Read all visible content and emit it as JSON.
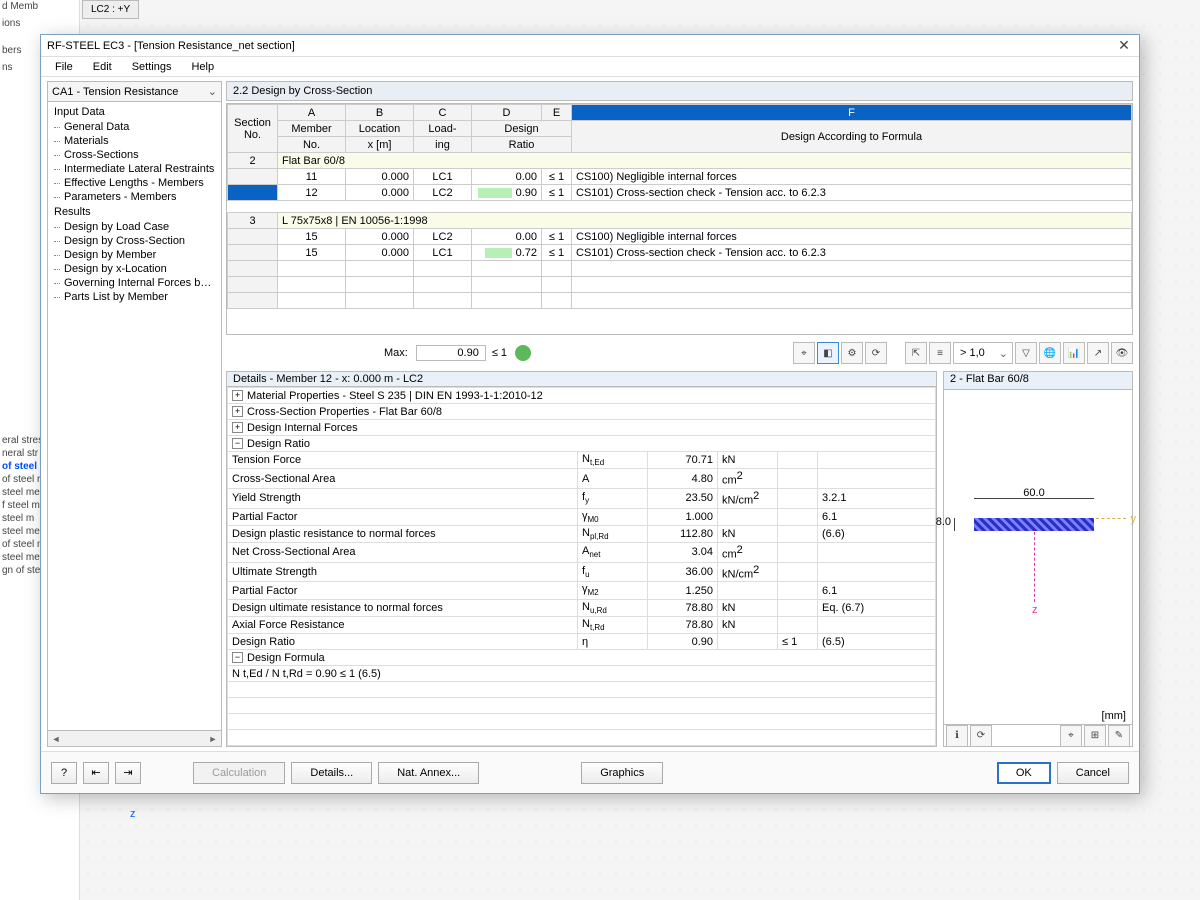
{
  "bg": {
    "tab": "LC2 : +Y",
    "left_partial": [
      "d Memb",
      "",
      "",
      "ions",
      "",
      "",
      "",
      "",
      "",
      "",
      "",
      "bers",
      "",
      "",
      "ns",
      "",
      "",
      "",
      "",
      "",
      "",
      "eral stres",
      "neral str",
      "of steel",
      "of steel r",
      "steel mer",
      "f steel m",
      "steel m",
      "steel me",
      "of steel me",
      "steel men",
      "gn of stee"
    ],
    "axis_z": "z"
  },
  "dialog": {
    "title": "RF-STEEL EC3 - [Tension Resistance_net section]",
    "menubar": [
      "File",
      "Edit",
      "Settings",
      "Help"
    ],
    "nav_combo": "CA1 - Tension Resistance",
    "nav": {
      "h1": "Input Data",
      "items1": [
        "General Data",
        "Materials",
        "Cross-Sections",
        "Intermediate Lateral Restraints",
        "Effective Lengths - Members",
        "Parameters - Members"
      ],
      "h2": "Results",
      "items2": [
        "Design by Load Case",
        "Design by Cross-Section",
        "Design by Member",
        "Design by x-Location",
        "Governing Internal Forces by M",
        "Parts List by Member"
      ]
    },
    "panel_title": "2.2 Design by Cross-Section",
    "grid": {
      "letters": [
        "A",
        "B",
        "C",
        "D",
        "E",
        "F"
      ],
      "h1": {
        "sec": "Section",
        "mem": "Member",
        "loc": "Location",
        "load": "Load-",
        "design": "Design",
        "f": ""
      },
      "h2": {
        "sec": "No.",
        "mem": "No.",
        "loc": "x [m]",
        "load": "ing",
        "ratio": "Ratio",
        "f": "Design According to Formula"
      },
      "s1": {
        "no": "2",
        "label": "Flat Bar 60/8"
      },
      "r": [
        {
          "mem": "11",
          "loc": "0.000",
          "load": "LC1",
          "bar": 0,
          "ratio": "0.00",
          "cond": "≤ 1",
          "desc": "CS100) Negligible internal forces"
        },
        {
          "mem": "12",
          "loc": "0.000",
          "load": "LC2",
          "bar": 50,
          "ratio": "0.90",
          "cond": "≤ 1",
          "desc": "CS101) Cross-section check - Tension acc. to 6.2.3",
          "sel": true
        }
      ],
      "s2": {
        "no": "3",
        "label": "L 75x75x8 | EN 10056-1:1998"
      },
      "r2": [
        {
          "mem": "15",
          "loc": "0.000",
          "load": "LC2",
          "bar": 0,
          "ratio": "0.00",
          "cond": "≤ 1",
          "desc": "CS100) Negligible internal forces"
        },
        {
          "mem": "15",
          "loc": "0.000",
          "load": "LC1",
          "bar": 40,
          "ratio": "0.72",
          "cond": "≤ 1",
          "desc": "CS101) Cross-section check - Tension acc. to 6.2.3"
        }
      ],
      "max_label": "Max:",
      "max_value": "0.90",
      "max_cond": "≤ 1",
      "combo": "> 1,0"
    },
    "details": {
      "header": "Details - Member 12 - x: 0.000 m - LC2",
      "caps": [
        {
          "s": "+",
          "t": "Material Properties - Steel S 235 | DIN EN 1993-1-1:2010-12"
        },
        {
          "s": "+",
          "t": "Cross-Section Properties  -  Flat Bar 60/8"
        },
        {
          "s": "+",
          "t": "Design Internal Forces"
        },
        {
          "s": "−",
          "t": "Design Ratio"
        }
      ],
      "rows": [
        {
          "n": "Tension Force",
          "sym": "N<sub>t,Ed</sub>",
          "v": "70.71",
          "u": "kN",
          "c": "",
          "ref": ""
        },
        {
          "n": "Cross-Sectional Area",
          "sym": "A",
          "v": "4.80",
          "u": "cm<sup>2</sup>",
          "c": "",
          "ref": ""
        },
        {
          "n": "Yield Strength",
          "sym": "f<sub>y</sub>",
          "v": "23.50",
          "u": "kN/cm<sup>2</sup>",
          "c": "",
          "ref": "3.2.1"
        },
        {
          "n": "Partial Factor",
          "sym": "γ<sub>M0</sub>",
          "v": "1.000",
          "u": "",
          "c": "",
          "ref": "6.1"
        },
        {
          "n": "Design plastic resistance to normal forces",
          "sym": "N<sub>pl,Rd</sub>",
          "v": "112.80",
          "u": "kN",
          "c": "",
          "ref": "(6.6)"
        },
        {
          "n": "Net Cross-Sectional Area",
          "sym": "A<sub>net</sub>",
          "v": "3.04",
          "u": "cm<sup>2</sup>",
          "c": "",
          "ref": ""
        },
        {
          "n": "Ultimate Strength",
          "sym": "f<sub>u</sub>",
          "v": "36.00",
          "u": "kN/cm<sup>2</sup>",
          "c": "",
          "ref": ""
        },
        {
          "n": "Partial Factor",
          "sym": "γ<sub>M2</sub>",
          "v": "1.250",
          "u": "",
          "c": "",
          "ref": "6.1"
        },
        {
          "n": "Design ultimate resistance to normal forces",
          "sym": "N<sub>u,Rd</sub>",
          "v": "78.80",
          "u": "kN",
          "c": "",
          "ref": "Eq. (6.7)"
        },
        {
          "n": "Axial Force Resistance",
          "sym": "N<sub>t,Rd</sub>",
          "v": "78.80",
          "u": "kN",
          "c": "",
          "ref": ""
        },
        {
          "n": "Design Ratio",
          "sym": "η",
          "v": "0.90",
          "u": "",
          "c": "≤ 1",
          "ref": "(6.5)"
        }
      ],
      "formula_cap": {
        "s": "−",
        "t": "Design Formula"
      },
      "formula": "N t,Ed / N t,Rd = 0.90 ≤ 1   (6.5)"
    },
    "csview": {
      "title": "2 - Flat Bar 60/8",
      "w": "60.0",
      "h": "8.0",
      "unit": "[mm]"
    },
    "footer": {
      "help": "?",
      "prev": "⇤",
      "next": "⇥",
      "calc": "Calculation",
      "details": "Details...",
      "annex": "Nat. Annex...",
      "graphics": "Graphics",
      "ok": "OK",
      "cancel": "Cancel"
    }
  }
}
